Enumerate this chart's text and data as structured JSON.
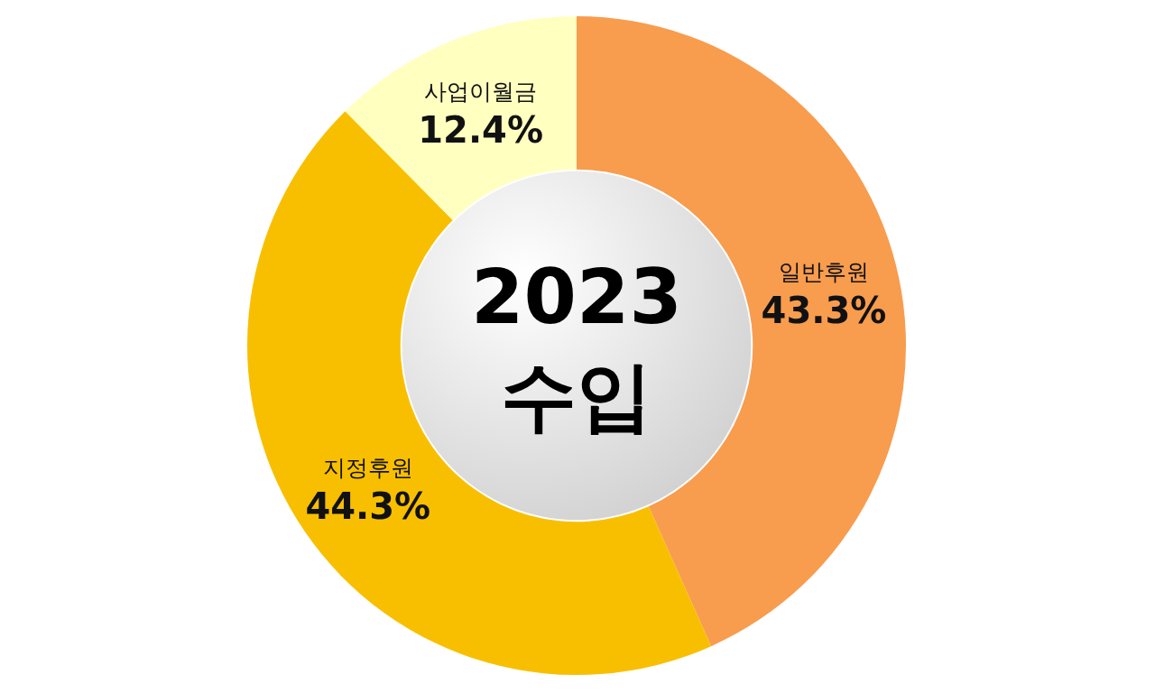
{
  "chart_data": {
    "type": "donut",
    "title": "2023\n수입",
    "categories": [
      "일반후원",
      "지정후원",
      "사업이월금"
    ],
    "values": [
      43.3,
      44.3,
      12.4
    ],
    "value_labels": [
      "43.3%",
      "44.3%",
      "12.4%"
    ],
    "colors": [
      "#f89c4e",
      "#f8bf00",
      "#ffffc0"
    ]
  }
}
